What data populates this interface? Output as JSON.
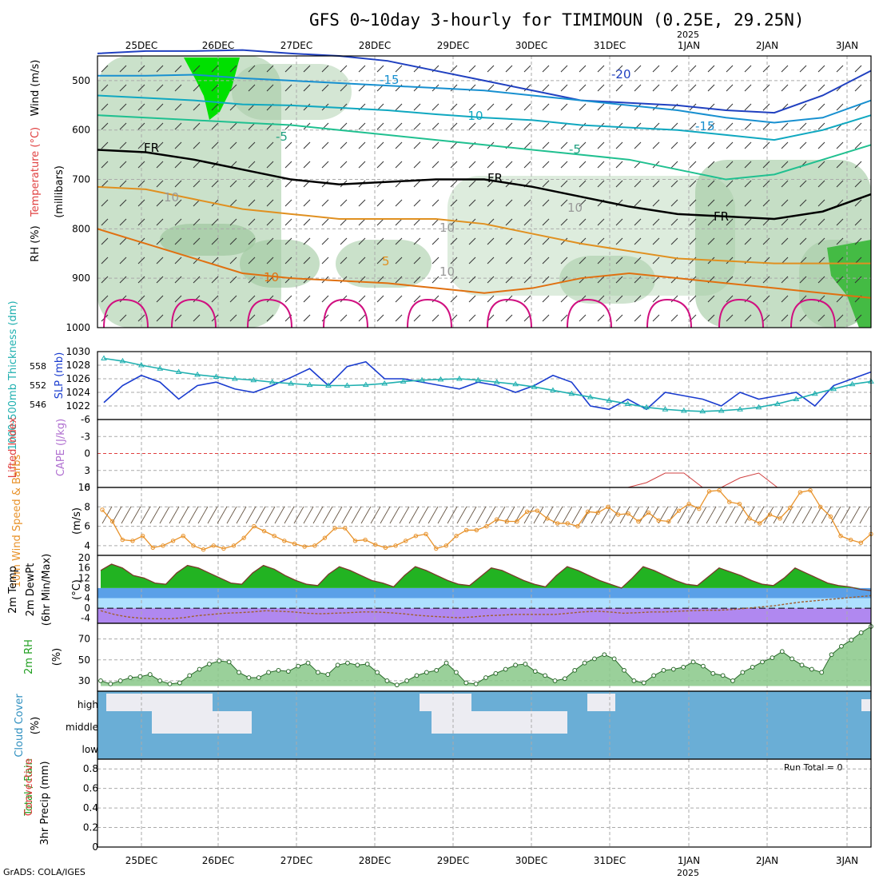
{
  "title": "GFS 0~10day 3-hourly for TIMIMOUN (0.25E, 29.25N)",
  "credit": "GrADS: COLA/IGES",
  "run_total": "Run Total = 0",
  "year_label": "2025",
  "colors": {
    "rh_shade": "#9fc89f",
    "rh_high": "#00e000",
    "slp": "#1a3ccf",
    "thickness": "#20b0b0",
    "wind": "#e8922a",
    "temp_fill": "#22b322",
    "dewpoint": "#a06030",
    "rh2m": "#88c888",
    "cloud": "#6aaed6",
    "cape": "#d04040"
  },
  "chart_data": [
    {
      "type": "line",
      "panel": "cross-section",
      "ylabels": [
        "Wind (m/s)",
        "Temperature (°C)",
        "RH (%)",
        "(millibars)"
      ],
      "x": [
        "25DEC",
        "26DEC",
        "27DEC",
        "28DEC",
        "29DEC",
        "30DEC",
        "31DEC",
        "1JAN",
        "2JAN",
        "3JAN"
      ],
      "yticks": [
        500,
        600,
        700,
        800,
        900,
        1000
      ],
      "ylim": [
        1000,
        450
      ],
      "contour_labels": [
        "-20",
        "-15",
        "-10",
        "-5",
        "FR",
        "5",
        "10",
        "-15",
        "-5",
        "FR",
        "FR",
        "10",
        "10",
        "10",
        "10"
      ],
      "isotherms": [
        {
          "name": "-20",
          "values": [
            445,
            440,
            440,
            438,
            445,
            450,
            460,
            480,
            500,
            520,
            540,
            545,
            550,
            560,
            565,
            530,
            480
          ]
        },
        {
          "name": "-15",
          "values": [
            490,
            490,
            488,
            495,
            500,
            505,
            510,
            515,
            520,
            530,
            540,
            550,
            560,
            575,
            585,
            575,
            540
          ]
        },
        {
          "name": "-10",
          "values": [
            530,
            535,
            540,
            548,
            550,
            555,
            560,
            568,
            575,
            580,
            590,
            595,
            600,
            610,
            620,
            600,
            570
          ]
        },
        {
          "name": "-5",
          "values": [
            570,
            575,
            580,
            585,
            590,
            600,
            610,
            620,
            630,
            640,
            650,
            660,
            680,
            700,
            690,
            660,
            630
          ]
        },
        {
          "name": "FR",
          "values": [
            640,
            645,
            660,
            680,
            700,
            710,
            705,
            700,
            700,
            715,
            735,
            755,
            770,
            775,
            780,
            765,
            730
          ]
        },
        {
          "name": "5",
          "values": [
            715,
            720,
            740,
            760,
            770,
            780,
            780,
            780,
            790,
            810,
            830,
            845,
            860,
            865,
            870,
            870,
            870
          ]
        },
        {
          "name": "10",
          "values": [
            800,
            830,
            860,
            890,
            900,
            905,
            910,
            920,
            930,
            920,
            900,
            890,
            900,
            910,
            920,
            930,
            940
          ]
        }
      ]
    },
    {
      "type": "line",
      "panel": "slp-thickness",
      "ylabels": [
        "SLP (mb)",
        "1000-500mb Thickness (dm)"
      ],
      "yticks_left": [
        "558",
        "552",
        "546"
      ],
      "yticks_right": [
        "1030",
        "1028",
        "1026",
        "1024",
        "1022"
      ],
      "ylim": [
        1020,
        1030
      ],
      "series": [
        {
          "name": "SLP (mb)",
          "values": [
            1022.5,
            1025,
            1026.5,
            1025.5,
            1023,
            1025,
            1025.5,
            1024.5,
            1024,
            1025,
            1026.2,
            1027.5,
            1025,
            1027.8,
            1028.5,
            1026,
            1026,
            1025.5,
            1025,
            1024.5,
            1025.5,
            1025,
            1024,
            1025,
            1026.5,
            1025.5,
            1022,
            1021.5,
            1023,
            1021.5,
            1024,
            1023.5,
            1023,
            1022,
            1024,
            1023,
            1023.5,
            1024,
            1022,
            1025,
            1026,
            1027
          ]
        },
        {
          "name": "1000-500mb Thickness (dm)",
          "values": [
            1029,
            1028.6,
            1028,
            1027.5,
            1027,
            1026.6,
            1026.3,
            1026,
            1025.8,
            1025.5,
            1025.3,
            1025.1,
            1025,
            1025,
            1025.1,
            1025.3,
            1025.6,
            1025.8,
            1025.9,
            1026,
            1025.8,
            1025.5,
            1025.2,
            1024.8,
            1024.3,
            1023.8,
            1023.3,
            1022.8,
            1022.3,
            1021.8,
            1021.5,
            1021.3,
            1021.2,
            1021.3,
            1021.5,
            1021.8,
            1022.3,
            1023,
            1023.8,
            1024.5,
            1025.2,
            1025.6
          ]
        }
      ]
    },
    {
      "type": "line",
      "panel": "lifted-index-cape",
      "ylabels": [
        "Lifted Index",
        "CAPE (J/kg)"
      ],
      "yticks": [
        "-6",
        "-3",
        "0",
        "3",
        "6"
      ],
      "right_tick": "10",
      "ylim": [
        6,
        -6
      ],
      "series": [
        {
          "name": "Lifted Index",
          "values": [
            0,
            0,
            0,
            0,
            0,
            0,
            0,
            0,
            0,
            0
          ]
        },
        {
          "name": "CAPE (J/kg)",
          "values": [
            0,
            0,
            0,
            0,
            0,
            0,
            0,
            0,
            0,
            0,
            0,
            0,
            0,
            0,
            0,
            0,
            0,
            0,
            0,
            0,
            0,
            0,
            0,
            0,
            0,
            0,
            0,
            0,
            0,
            1,
            3,
            3,
            0,
            0,
            2,
            3,
            0,
            0,
            0,
            0,
            0,
            0
          ]
        }
      ]
    },
    {
      "type": "line",
      "panel": "10m-wind",
      "ylabels": [
        "10m Wind Speed & Barbs",
        "(m/s)"
      ],
      "yticks": [
        "8",
        "6",
        "4"
      ],
      "ylim": [
        3,
        10
      ],
      "series": [
        {
          "name": "10m Wind Speed",
          "values": [
            7.7,
            6.5,
            4.6,
            4.5,
            5,
            3.8,
            4,
            4.5,
            5,
            4,
            3.6,
            4,
            3.7,
            4,
            4.8,
            6,
            5.5,
            5,
            4.5,
            4.2,
            3.9,
            4,
            4.8,
            5.8,
            5.8,
            4.5,
            4.6,
            4.1,
            3.8,
            4,
            4.5,
            5,
            5.2,
            3.7,
            4,
            5,
            5.6,
            5.6,
            6,
            6.7,
            6.5,
            6.5,
            7.5,
            7.6,
            6.8,
            6.3,
            6.3,
            6,
            7.5,
            7.4,
            8,
            7.2,
            7.3,
            6.5,
            7.4,
            6.6,
            6.5,
            7.6,
            8.3,
            7.8,
            9.6,
            9.7,
            8.5,
            8.3,
            6.8,
            6.3,
            7.2,
            6.8,
            7.9,
            9.5,
            9.7,
            8,
            7,
            5,
            4.6,
            4.3,
            5.2
          ]
        }
      ]
    },
    {
      "type": "area",
      "panel": "2m-temp",
      "ylabels": [
        "2m Temp",
        "2m DewPt",
        "(6hr Min/Max)",
        "(°C)"
      ],
      "yticks": [
        "20",
        "16",
        "12",
        "8",
        "4",
        "0",
        "-4"
      ],
      "ylim": [
        -6,
        21
      ],
      "series": [
        {
          "name": "2m Temp",
          "values": [
            15,
            17.5,
            16,
            13,
            12,
            10,
            9.5,
            14,
            17,
            16,
            14,
            12,
            10,
            9.5,
            14,
            17,
            15.5,
            13,
            11,
            9.5,
            9,
            13.5,
            16.5,
            15,
            13,
            11,
            10,
            8.5,
            13,
            16.5,
            15,
            13,
            11,
            9.5,
            9,
            12.5,
            16,
            15,
            13,
            11,
            9.5,
            8.5,
            13,
            16.5,
            15,
            13,
            11,
            9.5,
            8,
            12,
            16.5,
            15,
            13,
            11,
            9.5,
            9,
            12.5,
            16,
            14.5,
            13,
            11,
            9.5,
            9,
            12,
            16,
            14,
            12,
            10,
            9,
            8.5,
            7.5,
            7
          ]
        },
        {
          "name": "2m DewPt",
          "values": [
            -1,
            -2.5,
            -3.5,
            -4,
            -4.2,
            -4.2,
            -3.8,
            -3,
            -2.5,
            -2,
            -1.8,
            -1.5,
            -1,
            -1.2,
            -1.5,
            -2,
            -2.2,
            -2,
            -1.8,
            -1.5,
            -1.5,
            -1.8,
            -2.2,
            -2.8,
            -3.2,
            -3.5,
            -3.8,
            -3.5,
            -3,
            -2.8,
            -2.5,
            -2.5,
            -2.5,
            -2.5,
            -2,
            -1.5,
            -1.2,
            -1.5,
            -2,
            -1.8,
            -1.5,
            -1.5,
            -1.2,
            -1,
            -0.8,
            -0.8,
            -0.5,
            0,
            0.5,
            1,
            1.8,
            2.5,
            3,
            3.5,
            4,
            4.5,
            5
          ]
        }
      ]
    },
    {
      "type": "area",
      "panel": "2m-rh",
      "ylabels": [
        "2m RH",
        "(%)"
      ],
      "yticks": [
        "70",
        "50",
        "30"
      ],
      "ylim": [
        20,
        85
      ],
      "series": [
        {
          "name": "2m RH",
          "values": [
            30,
            27,
            30,
            33,
            34,
            36,
            30,
            27,
            28,
            35,
            41,
            46,
            49,
            48,
            38,
            33,
            33,
            38,
            40,
            39,
            44,
            47,
            38,
            36,
            45,
            47,
            45,
            46,
            38,
            30,
            26,
            30,
            35,
            38,
            40,
            47,
            38,
            28,
            27,
            33,
            37,
            41,
            45,
            46,
            39,
            35,
            30,
            32,
            40,
            47,
            51,
            55,
            51,
            40,
            30,
            28,
            35,
            40,
            41,
            43,
            48,
            44,
            37,
            35,
            30,
            38,
            43,
            48,
            52,
            58,
            51,
            45,
            41,
            38,
            55,
            63,
            69,
            76,
            82
          ]
        }
      ]
    },
    {
      "type": "area",
      "panel": "cloud-cover",
      "ylabels": [
        "Cloud Cover",
        "(%)"
      ],
      "yticks": [
        "high",
        "middle",
        "low"
      ]
    },
    {
      "type": "bar",
      "panel": "precip",
      "ylabels": [
        "Total / Rain",
        "Convective",
        "3hr Precip (mm)"
      ],
      "yticks": [
        "0.8",
        "0.6",
        "0.4",
        "0.2",
        "0"
      ],
      "ylim": [
        0,
        0.9
      ],
      "values": []
    }
  ]
}
